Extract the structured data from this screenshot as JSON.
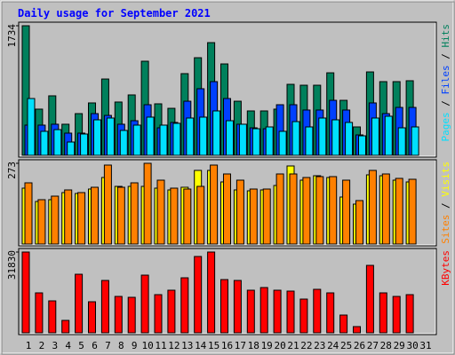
{
  "title": "Daily usage for September 2021",
  "legend_separator": " / ",
  "chart_data": [
    {
      "type": "bar",
      "series": [
        {
          "name": "Hits",
          "color": "#00805c",
          "values": [
            1734,
            618,
            796,
            416,
            558,
            701,
            1021,
            713,
            808,
            1259,
            689,
            629,
            1093,
            1306,
            1508,
            1223,
            724,
            594,
            594,
            618,
            950,
            938,
            938,
            1104,
            736,
            380,
            1116,
            986,
            986,
            998,
            null
          ]
        },
        {
          "name": "Files",
          "color": "#0040ff",
          "values": [
            404,
            404,
            416,
            297,
            297,
            558,
            534,
            416,
            463,
            677,
            368,
            440,
            724,
            891,
            986,
            760,
            416,
            368,
            356,
            677,
            677,
            606,
            606,
            736,
            606,
            273,
            701,
            558,
            641,
            641,
            null
          ]
        },
        {
          "name": "Pages",
          "color": "#00e0ff",
          "values": [
            760,
            321,
            344,
            178,
            285,
            475,
            499,
            333,
            404,
            511,
            404,
            428,
            499,
            511,
            594,
            463,
            416,
            356,
            380,
            321,
            451,
            380,
            499,
            475,
            440,
            261,
            499,
            523,
            368,
            380,
            null
          ]
        }
      ],
      "ylim": [
        0,
        1734
      ],
      "yticks": [
        1734
      ]
    },
    {
      "type": "bar",
      "series": [
        {
          "name": "Visits",
          "color": "#ffff00",
          "values": [
            189,
            144,
            150,
            174,
            171,
            186,
            225,
            195,
            195,
            195,
            189,
            183,
            192,
            249,
            249,
            210,
            183,
            180,
            183,
            198,
            264,
            216,
            231,
            225,
            159,
            135,
            234,
            231,
            216,
            210,
            null
          ]
        },
        {
          "name": "Sites",
          "color": "#ff8000",
          "values": [
            207,
            150,
            162,
            183,
            174,
            192,
            267,
            192,
            207,
            273,
            216,
            189,
            186,
            195,
            267,
            237,
            216,
            186,
            186,
            237,
            237,
            225,
            228,
            228,
            216,
            147,
            249,
            237,
            222,
            219,
            null
          ]
        }
      ],
      "ylim": [
        0,
        273
      ],
      "yticks": [
        273
      ]
    },
    {
      "type": "bar",
      "categories": [
        "1",
        "2",
        "3",
        "4",
        "5",
        "6",
        "7",
        "8",
        "9",
        "10",
        "11",
        "12",
        "13",
        "14",
        "15",
        "16",
        "17",
        "18",
        "19",
        "20",
        "21",
        "22",
        "23",
        "24",
        "25",
        "26",
        "27",
        "28",
        "29",
        "30",
        "31"
      ],
      "category_colors": [
        "#000000",
        "#000000",
        "#000000",
        "#00805c",
        "#00805c",
        "#000000",
        "#000000",
        "#000000",
        "#000000",
        "#000000",
        "#00805c",
        "#00805c",
        "#000000",
        "#000000",
        "#000000",
        "#000000",
        "#000000",
        "#00805c",
        "#00805c",
        "#000000",
        "#000000",
        "#000000",
        "#000000",
        "#000000",
        "#00805c",
        "#00805c",
        "#000000",
        "#000000",
        "#000000",
        "#000000",
        "#000000"
      ],
      "series": [
        {
          "name": "KBytes",
          "color": "#ff0000",
          "values": [
            31830,
            15740,
            12590,
            4897,
            23080,
            12240,
            20640,
            14340,
            13990,
            22730,
            15040,
            16790,
            21680,
            30080,
            31830,
            20980,
            20640,
            16790,
            17840,
            16790,
            16440,
            13290,
            17140,
            15740,
            6996,
            2448,
            26580,
            15740,
            14340,
            15040,
            null
          ]
        }
      ],
      "ylim": [
        0,
        31830
      ],
      "yticks": [
        31830
      ]
    }
  ]
}
